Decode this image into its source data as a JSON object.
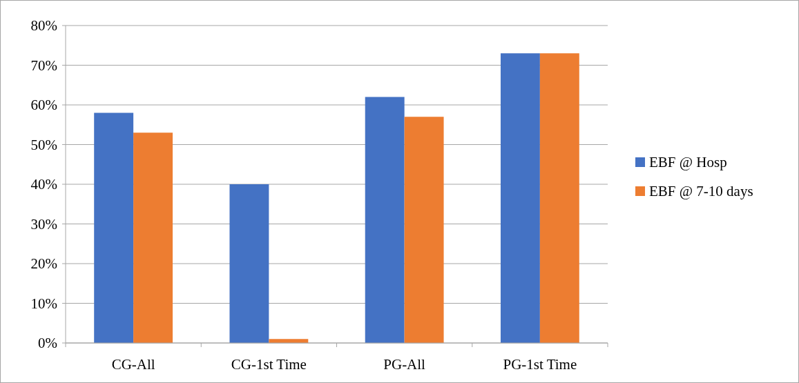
{
  "chart_data": {
    "type": "bar",
    "categories": [
      "CG-All",
      "CG-1st Time",
      "PG-All",
      "PG-1st Time"
    ],
    "series": [
      {
        "name": "EBF @ Hosp",
        "color": "#4472c4",
        "values": [
          58,
          40,
          62,
          73
        ]
      },
      {
        "name": "EBF @ 7-10 days",
        "color": "#ed7d31",
        "values": [
          53,
          1,
          57,
          73
        ]
      }
    ],
    "ylim": [
      0,
      80
    ],
    "yticks": [
      {
        "value": 0,
        "label": "0%"
      },
      {
        "value": 10,
        "label": "10%"
      },
      {
        "value": 20,
        "label": "20%"
      },
      {
        "value": 30,
        "label": "30%"
      },
      {
        "value": 40,
        "label": "40%"
      },
      {
        "value": 50,
        "label": "50%"
      },
      {
        "value": 60,
        "label": "60%"
      },
      {
        "value": 70,
        "label": "70%"
      },
      {
        "value": 80,
        "label": "80%"
      }
    ],
    "grid": "y",
    "legend": "right"
  }
}
